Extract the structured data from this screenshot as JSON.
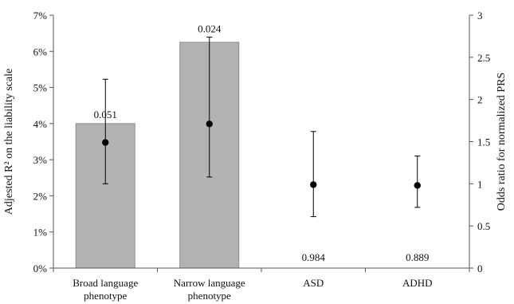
{
  "chart_data": {
    "type": "bar",
    "categories": [
      [
        "Broad language",
        "phenotype"
      ],
      [
        "Narrow language",
        "phenotype"
      ],
      [
        "ASD"
      ],
      [
        "ADHD"
      ]
    ],
    "bar_values": [
      0.04,
      0.0625,
      null,
      null
    ],
    "odds_ratio": {
      "point": [
        1.49,
        1.71,
        0.99,
        0.98
      ],
      "lower": [
        1.0,
        1.08,
        0.61,
        0.72
      ],
      "upper": [
        2.24,
        2.74,
        1.62,
        1.33
      ]
    },
    "p_values": [
      "0.051",
      "0.024",
      "0.984",
      "0.889"
    ],
    "y_left": {
      "label": "Adjested R² on the liability scale",
      "ylim": [
        0,
        0.07
      ],
      "ticks": [
        "0%",
        "1%",
        "2%",
        "3%",
        "4%",
        "5%",
        "6%",
        "7%"
      ]
    },
    "y_right": {
      "label": "Odds ratio for normalized PRS",
      "ylim": [
        0,
        3
      ],
      "ticks": [
        "0",
        "0.5",
        "1",
        "1.5",
        "2",
        "2.5",
        "3"
      ]
    },
    "colors": {
      "bar": "#b3b3b3",
      "bar_edge": "#8c8c8c",
      "point": "#000000",
      "axis": "#555555"
    },
    "grid": false,
    "legend": "none"
  }
}
